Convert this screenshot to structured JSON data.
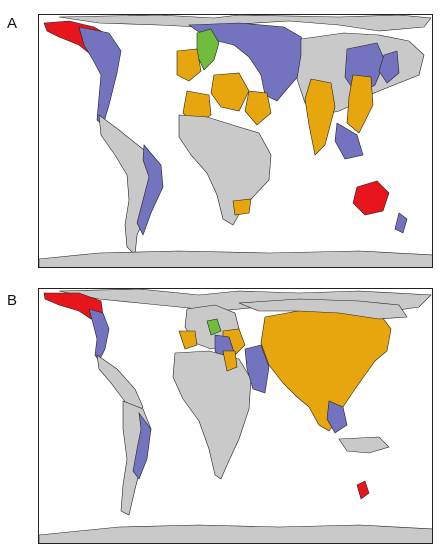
{
  "panels": [
    {
      "label": "A",
      "colors": {
        "land": "#c9c9c9",
        "red": "#e8161c",
        "orange": "#e8a60e",
        "blue": "#7473c0",
        "green": "#6fbd3b",
        "border": "#222222"
      }
    },
    {
      "label": "B",
      "colors": {
        "land": "#c9c9c9",
        "red": "#e8161c",
        "orange": "#e8a60e",
        "blue": "#7473c0",
        "green": "#6fbd3b",
        "border": "#222222"
      }
    }
  ]
}
